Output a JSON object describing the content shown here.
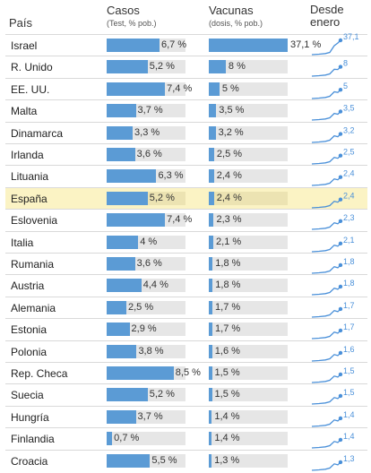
{
  "headers": {
    "country": "País",
    "cases": "Casos",
    "cases_sub": "(Test, % pob.)",
    "vaccines": "Vacunas",
    "vaccines_sub": "(dosis, % pob.)",
    "since_l1": "Desde",
    "since_l2": "enero"
  },
  "colors": {
    "bar": "#5b9bd5",
    "track": "#e6e6e6",
    "highlight": "#fbf3c4",
    "spark": "#4a90d9"
  },
  "highlighted_country": "España",
  "chart_data": {
    "type": "table",
    "columns": [
      "País",
      "Casos",
      "Vacunas",
      "Desde enero"
    ],
    "x_range": [
      0,
      10
    ],
    "rows": [
      {
        "country": "Israel",
        "cases": 6.7,
        "cases_label": "6,7 %",
        "vaccines": 37.1,
        "vaccines_label": "37,1 %",
        "since_jan_label": "37,1",
        "bar_cases": 0.67,
        "bar_vacc": 1.0
      },
      {
        "country": "R. Unido",
        "cases": 5.2,
        "cases_label": "5,2 %",
        "vaccines": 8.0,
        "vaccines_label": "8 %",
        "since_jan_label": "8",
        "bar_cases": 0.52,
        "bar_vacc": 0.215
      },
      {
        "country": "EE. UU.",
        "cases": 7.4,
        "cases_label": "7,4 %",
        "vaccines": 5.0,
        "vaccines_label": "5 %",
        "since_jan_label": "5",
        "bar_cases": 0.74,
        "bar_vacc": 0.135
      },
      {
        "country": "Malta",
        "cases": 3.7,
        "cases_label": "3,7 %",
        "vaccines": 3.5,
        "vaccines_label": "3,5 %",
        "since_jan_label": "3,5",
        "bar_cases": 0.37,
        "bar_vacc": 0.094
      },
      {
        "country": "Dinamarca",
        "cases": 3.3,
        "cases_label": "3,3 %",
        "vaccines": 3.2,
        "vaccines_label": "3,2 %",
        "since_jan_label": "3,2",
        "bar_cases": 0.33,
        "bar_vacc": 0.086
      },
      {
        "country": "Irlanda",
        "cases": 3.6,
        "cases_label": "3,6 %",
        "vaccines": 2.5,
        "vaccines_label": "2,5 %",
        "since_jan_label": "2,5",
        "bar_cases": 0.36,
        "bar_vacc": 0.067
      },
      {
        "country": "Lituania",
        "cases": 6.3,
        "cases_label": "6,3 %",
        "vaccines": 2.4,
        "vaccines_label": "2,4 %",
        "since_jan_label": "2,4",
        "bar_cases": 0.63,
        "bar_vacc": 0.065
      },
      {
        "country": "España",
        "cases": 5.2,
        "cases_label": "5,2 %",
        "vaccines": 2.4,
        "vaccines_label": "2,4 %",
        "since_jan_label": "2,4",
        "bar_cases": 0.52,
        "bar_vacc": 0.065
      },
      {
        "country": "Eslovenia",
        "cases": 7.4,
        "cases_label": "7,4 %",
        "vaccines": 2.3,
        "vaccines_label": "2,3 %",
        "since_jan_label": "2,3",
        "bar_cases": 0.74,
        "bar_vacc": 0.062
      },
      {
        "country": "Italia",
        "cases": 4.0,
        "cases_label": "4 %",
        "vaccines": 2.1,
        "vaccines_label": "2,1 %",
        "since_jan_label": "2,1",
        "bar_cases": 0.4,
        "bar_vacc": 0.057
      },
      {
        "country": "Rumania",
        "cases": 3.6,
        "cases_label": "3,6 %",
        "vaccines": 1.8,
        "vaccines_label": "1,8 %",
        "since_jan_label": "1,8",
        "bar_cases": 0.36,
        "bar_vacc": 0.049
      },
      {
        "country": "Austria",
        "cases": 4.4,
        "cases_label": "4,4 %",
        "vaccines": 1.8,
        "vaccines_label": "1,8 %",
        "since_jan_label": "1,8",
        "bar_cases": 0.44,
        "bar_vacc": 0.049
      },
      {
        "country": "Alemania",
        "cases": 2.5,
        "cases_label": "2,5 %",
        "vaccines": 1.7,
        "vaccines_label": "1,7 %",
        "since_jan_label": "1,7",
        "bar_cases": 0.25,
        "bar_vacc": 0.046
      },
      {
        "country": "Estonia",
        "cases": 2.9,
        "cases_label": "2,9 %",
        "vaccines": 1.7,
        "vaccines_label": "1,7 %",
        "since_jan_label": "1,7",
        "bar_cases": 0.29,
        "bar_vacc": 0.046
      },
      {
        "country": "Polonia",
        "cases": 3.8,
        "cases_label": "3,8 %",
        "vaccines": 1.6,
        "vaccines_label": "1,6 %",
        "since_jan_label": "1,6",
        "bar_cases": 0.38,
        "bar_vacc": 0.043
      },
      {
        "country": "Rep. Checa",
        "cases": 8.5,
        "cases_label": "8,5 %",
        "vaccines": 1.5,
        "vaccines_label": "1,5 %",
        "since_jan_label": "1,5",
        "bar_cases": 0.85,
        "bar_vacc": 0.04
      },
      {
        "country": "Suecia",
        "cases": 5.2,
        "cases_label": "5,2 %",
        "vaccines": 1.5,
        "vaccines_label": "1,5 %",
        "since_jan_label": "1,5",
        "bar_cases": 0.52,
        "bar_vacc": 0.04
      },
      {
        "country": "Hungría",
        "cases": 3.7,
        "cases_label": "3,7 %",
        "vaccines": 1.4,
        "vaccines_label": "1,4 %",
        "since_jan_label": "1,4",
        "bar_cases": 0.37,
        "bar_vacc": 0.038
      },
      {
        "country": "Finlandia",
        "cases": 0.7,
        "cases_label": "0,7 %",
        "vaccines": 1.4,
        "vaccines_label": "1,4 %",
        "since_jan_label": "1,4",
        "bar_cases": 0.07,
        "bar_vacc": 0.038
      },
      {
        "country": "Croacia",
        "cases": 5.5,
        "cases_label": "5,5 %",
        "vaccines": 1.3,
        "vaccines_label": "1,3 %",
        "since_jan_label": "1,3",
        "bar_cases": 0.55,
        "bar_vacc": 0.035
      }
    ]
  }
}
